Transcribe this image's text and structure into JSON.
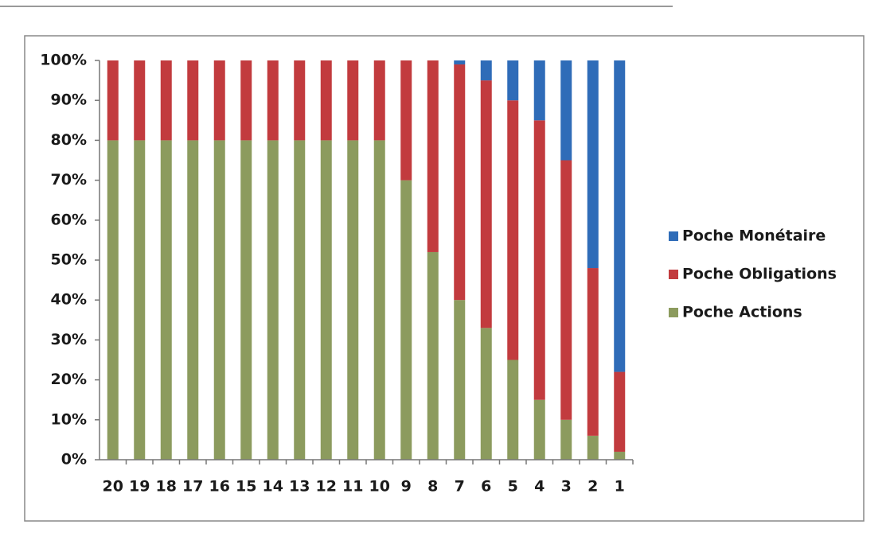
{
  "chart_data": {
    "type": "stacked_bar",
    "categories": [
      "20",
      "19",
      "18",
      "17",
      "16",
      "15",
      "14",
      "13",
      "12",
      "11",
      "10",
      "9",
      "8",
      "7",
      "6",
      "5",
      "4",
      "3",
      "2",
      "1"
    ],
    "series": [
      {
        "name": "Poche Actions",
        "color": "#8c9b5e",
        "values": [
          80,
          80,
          80,
          80,
          80,
          80,
          80,
          80,
          80,
          80,
          80,
          70,
          52,
          40,
          33,
          25,
          15,
          10,
          6,
          2
        ]
      },
      {
        "name": "Poche Obligations",
        "color": "#c23b3e",
        "values": [
          20,
          20,
          20,
          20,
          20,
          20,
          20,
          20,
          20,
          20,
          20,
          30,
          48,
          59,
          62,
          65,
          70,
          65,
          42,
          20
        ]
      },
      {
        "name": "Poche Monétaire",
        "color": "#2f6cb8",
        "values": [
          0,
          0,
          0,
          0,
          0,
          0,
          0,
          0,
          0,
          0,
          0,
          0,
          0,
          1,
          5,
          10,
          15,
          25,
          52,
          78
        ]
      }
    ],
    "ylim": [
      0,
      100
    ],
    "yticks": [
      {
        "value": 0,
        "label": "0%"
      },
      {
        "value": 10,
        "label": "10%"
      },
      {
        "value": 20,
        "label": "20%"
      },
      {
        "value": 30,
        "label": "30%"
      },
      {
        "value": 40,
        "label": "40%"
      },
      {
        "value": 50,
        "label": "50%"
      },
      {
        "value": 60,
        "label": "60%"
      },
      {
        "value": 70,
        "label": "70%"
      },
      {
        "value": 80,
        "label": "80%"
      },
      {
        "value": 90,
        "label": "90%"
      },
      {
        "value": 100,
        "label": "100%"
      }
    ],
    "grid": false,
    "legend": "right"
  }
}
